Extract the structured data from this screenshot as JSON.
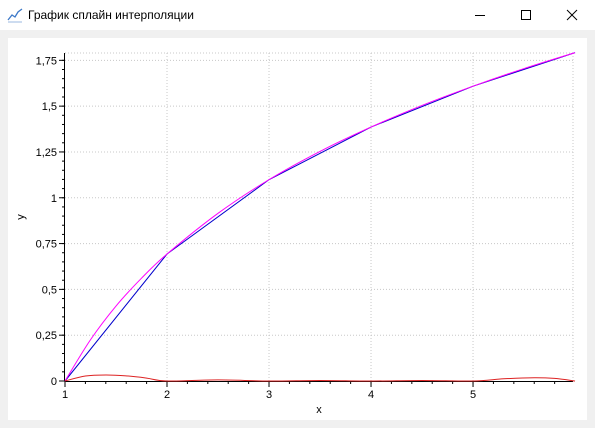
{
  "window": {
    "title": "График сплайн интерполяции",
    "icon": "line-chart-icon",
    "controls": {
      "minimize": "minimize-icon",
      "maximize": "maximize-icon",
      "close": "close-icon"
    }
  },
  "chart_data": {
    "type": "line",
    "xlabel": "x",
    "ylabel": "y",
    "xlim": [
      1,
      5.98
    ],
    "ylim": [
      0,
      1.79
    ],
    "x_ticks": [
      1,
      2,
      3,
      4,
      5
    ],
    "x_tick_labels": [
      "1",
      "2",
      "3",
      "4",
      "5"
    ],
    "y_ticks": [
      0,
      0.25,
      0.5,
      0.75,
      1,
      1.25,
      1.5,
      1.75
    ],
    "y_tick_labels": [
      "0",
      "0,25",
      "0,5",
      "0,75",
      "1",
      "1,25",
      "1,5",
      "1,75"
    ],
    "grid": true,
    "legend": "none",
    "series": [
      {
        "color": "#0000cc",
        "x": [
          1,
          2,
          3,
          4,
          5,
          6
        ],
        "y": [
          0,
          0.693,
          1.099,
          1.386,
          1.609,
          1.792
        ]
      },
      {
        "color": "#ff00ff",
        "x": [
          1,
          1.25,
          1.5,
          1.75,
          2,
          2.5,
          3,
          3.5,
          4,
          4.5,
          5,
          5.5,
          6
        ],
        "y": [
          0,
          0.225,
          0.409,
          0.561,
          0.693,
          0.915,
          1.099,
          1.253,
          1.386,
          1.504,
          1.609,
          1.705,
          1.792
        ]
      },
      {
        "color": "#dd2222",
        "x": [
          1,
          1.2,
          1.4,
          1.6,
          1.8,
          2,
          2.5,
          3,
          3.5,
          4,
          4.5,
          5,
          5.3,
          5.6,
          5.8,
          6
        ],
        "y": [
          0,
          0.027,
          0.033,
          0.028,
          0.016,
          0,
          0.006,
          0,
          0.003,
          0,
          0.003,
          0,
          0.012,
          0.018,
          0.014,
          0
        ]
      }
    ]
  }
}
